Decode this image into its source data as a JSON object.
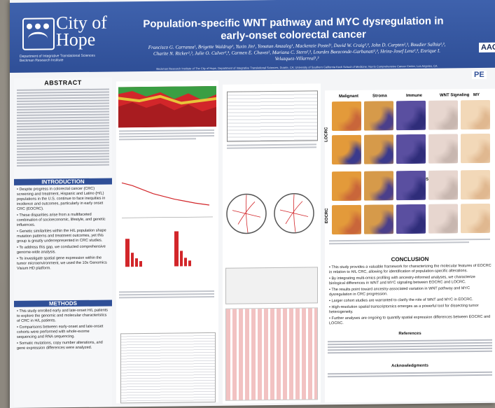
{
  "header": {
    "title": "Population-specific WNT pathway and MYC dysregulation in early-onset colorectal cancer",
    "authors": "Francisco G. Carranza¹, Brigette Waldrup¹, Yuxin Jin¹, Yonatan Amzaleg¹, Mackenzie Postel¹, David W. Craig²,³, John D. Carpten²,³, Boudier Salhia²,³, Charite N. Ricker²,³, Julie O. Culver²,³, Carmen E. Chavez², Mariana C. Stern²,³, Lourdes Baezconde-Garbanati²,³, Heinz-Josef Lenz²,³, Enrique I. Velazquez-Villarreal¹,³",
    "affiliation": "Beckman Research Institute of The City of Hope, Department of Integrative Translational Sciences, Duarte, CA; University of Southern California Keck School of Medicine; Norris Comprehensive Cancer Center, Los Angeles, CA"
  },
  "logo": {
    "word": "City of Hope",
    "dept": "Department of Integrative Translational Sciences Beckman Research Institute"
  },
  "badges": {
    "aacr": "AAC",
    "pe": "PE"
  },
  "sections": {
    "abstract": "ABSTRACT",
    "introduction": "INTRODUCTION",
    "methods": "METHODS",
    "conclusion": "CONCLUSION",
    "references": "References",
    "acknowledgments": "Acknowledgments"
  },
  "intro_bullets": [
    "Despite progress in colorectal cancer (CRC) screening and treatment, Hispanic and Latino (H/L) populations in the U.S. continue to face inequities in incidence and outcomes, particularly in early onset CRC (EOCRC).",
    "These disparities arise from a multifaceted combination of socioeconomic, lifestyle, and genetic influences.",
    "Genetic similarities within the H/L population shape mutation patterns and treatment outcomes, yet this group is greatly underrepresented in CRC studies.",
    "To address this gap, we conducted comprehensive genome-wide analysis.",
    "To investigate spatial gene expression within the tumor microenvironment, we used the 10x Genomics Visium HD platform."
  ],
  "methods_bullets": [
    "This study enrolled early and late-onset H/L patients to explore the genomic and molecular characteristics of CRC in H/L patients.",
    "Comparisons between early-onset and late-onset cohorts were performed with whole-exome sequencing and RNA sequencing.",
    "Somatic mutations, copy number alterations, and gene expression differences were analyzed."
  ],
  "spatial_panel": {
    "columns": [
      "Malignant",
      "Stroma",
      "Immune",
      "WNT Signaling",
      "MY"
    ],
    "row_labels": [
      "LOCRC",
      "EOCRC"
    ],
    "vs_label": "VS"
  },
  "conclusion_bullets": [
    "This study provides a valuable framework for characterizing the molecular features of EOCRC in relation to H/L CRC, allowing for identification of population-specific alterations.",
    "By integrating multi-omics profiling with ancestry-informed analyses, we characterize biological differences in WNT and MYC signaling between EOCRC and LOCRC.",
    "The results point toward ancestry-associated variation in WNT pathway and MYC dysregulation in CRC progression.",
    "Larger cohort studies are warranted to clarify the role of WNT and MYC in EOCRC.",
    "High-resolution spatial transcriptomics emerges as a powerful tool for dissecting tumor heterogeneity.",
    "Further analyses are ongoing to quantify spatial expression differences between EOCRC and LOCRC."
  ],
  "colors": {
    "header_blue": "#2f4f97",
    "heat_red": "#d2262a",
    "heat_green": "#3a9e43",
    "tissue_orange": "#e0902c",
    "tissue_purple": "#3b3a8c"
  }
}
